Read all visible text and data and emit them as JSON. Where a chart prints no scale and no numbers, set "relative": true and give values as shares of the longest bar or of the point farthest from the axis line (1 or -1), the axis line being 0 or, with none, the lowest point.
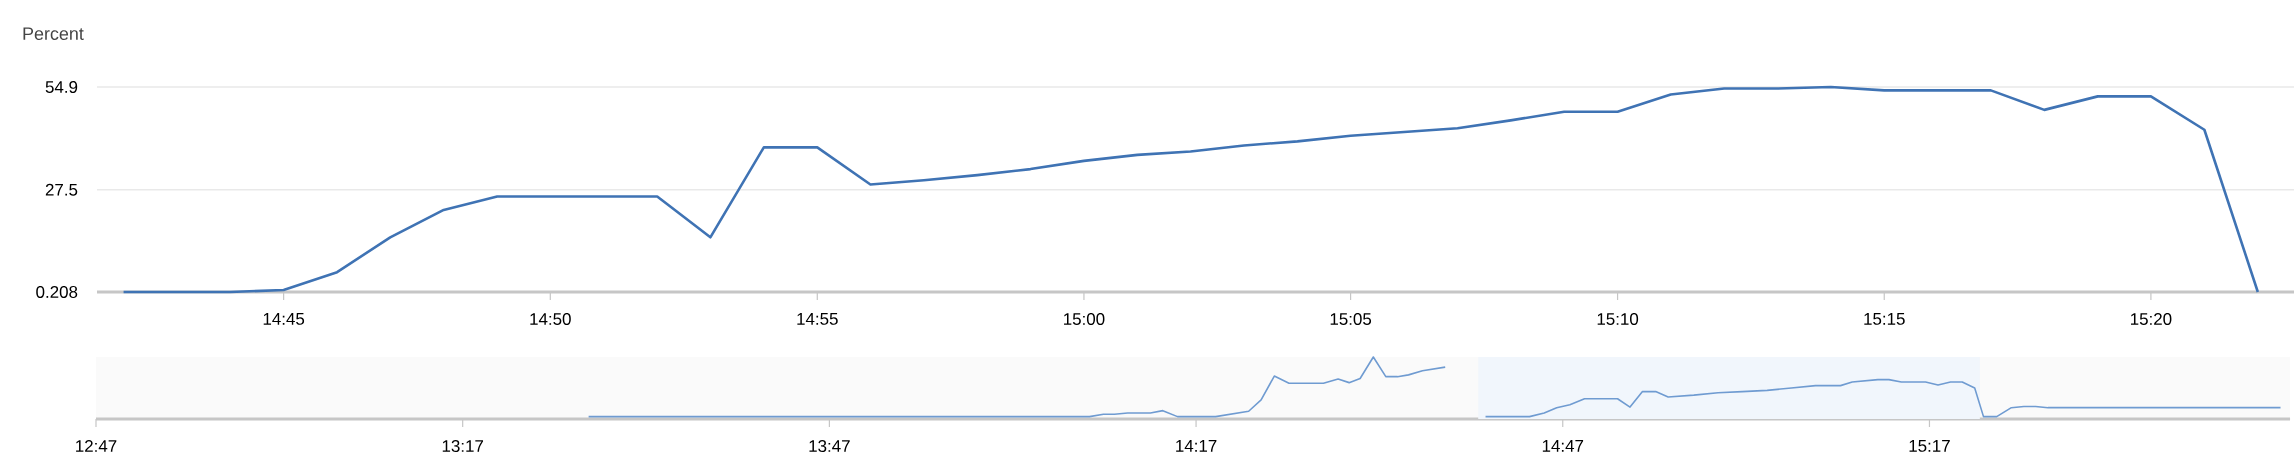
{
  "chart_data": [
    {
      "type": "line",
      "ylabel": "Percent",
      "x": [
        14.7,
        14.7167,
        14.7333,
        14.75,
        14.7667,
        14.7833,
        14.8,
        14.8167,
        14.8333,
        14.85,
        14.8667,
        14.8833,
        14.9,
        14.9167,
        14.9333,
        14.95,
        14.9667,
        14.9833,
        15.0,
        15.0167,
        15.0333,
        15.05,
        15.0667,
        15.0833,
        15.1,
        15.1167,
        15.1333,
        15.15,
        15.1667,
        15.1833,
        15.2,
        15.2167,
        15.2333,
        15.25,
        15.2667,
        15.2833,
        15.3,
        15.3167,
        15.3333,
        15.35,
        15.3667
      ],
      "series": [
        {
          "color": "#3f73b4",
          "values": [
            0.208,
            0.208,
            0.208,
            0.74,
            5.5,
            14.8,
            22.1,
            25.7,
            25.7,
            25.7,
            25.7,
            14.8,
            38.8,
            38.8,
            28.9,
            30.0,
            31.4,
            33.0,
            35.2,
            36.8,
            37.7,
            39.3,
            40.4,
            41.9,
            42.9,
            43.9,
            46.0,
            48.3,
            48.3,
            52.9,
            54.5,
            54.5,
            54.9,
            54.0,
            54.0,
            54.0,
            48.8,
            52.4,
            52.4,
            43.5,
            0.208
          ]
        }
      ],
      "xlim": [
        14.6917,
        15.378
      ],
      "xticks": [
        {
          "value": 14.75,
          "label": "14:45"
        },
        {
          "value": 14.8333,
          "label": "14:50"
        },
        {
          "value": 14.9167,
          "label": "14:55"
        },
        {
          "value": 15.0,
          "label": "15:00"
        },
        {
          "value": 15.0833,
          "label": "15:05"
        },
        {
          "value": 15.1667,
          "label": "15:10"
        },
        {
          "value": 15.25,
          "label": "15:15"
        },
        {
          "value": 15.3333,
          "label": "15:20"
        }
      ],
      "ylim": [
        0.208,
        54.9
      ],
      "yticks": [
        0.208,
        27.5,
        54.9
      ],
      "grid": "y"
    },
    {
      "type": "line",
      "relative": true,
      "x": [
        13.455,
        14.138,
        14.157,
        14.172,
        14.19,
        14.221,
        14.238,
        14.258,
        14.31,
        14.355,
        14.372,
        14.39,
        14.41,
        14.457,
        14.477,
        14.492,
        14.507,
        14.525,
        14.542,
        14.558,
        14.573,
        14.592,
        14.623,
        14.65,
        14.678,
        14.738,
        14.758,
        14.775,
        14.793,
        14.813,
        14.858,
        14.875,
        14.892,
        14.91,
        14.927,
        14.962,
        14.995,
        15.028,
        15.062,
        15.095,
        15.128,
        15.162,
        15.178,
        15.213,
        15.228,
        15.245,
        15.278,
        15.295,
        15.312,
        15.328,
        15.345,
        15.357,
        15.375,
        15.395,
        15.412,
        15.428,
        15.445,
        15.762
      ],
      "series": [
        {
          "color": "#6f9bd1",
          "values": [
            0,
            0,
            0.04,
            0.04,
            0.06,
            0.06,
            0.1,
            0,
            0,
            0.09,
            0.28,
            0.68,
            0.56,
            0.56,
            0.63,
            0.57,
            0.64,
            1,
            0.67,
            0.67,
            0.7,
            0.77,
            0.83,
            null,
            0,
            0,
            0.06,
            0.15,
            0.2,
            0.3,
            0.3,
            0.16,
            0.42,
            0.42,
            0.33,
            0.36,
            0.4,
            0.42,
            0.44,
            0.48,
            0.52,
            0.52,
            0.58,
            0.62,
            0.62,
            0.58,
            0.58,
            0.53,
            0.58,
            0.58,
            0.48,
            0,
            0,
            0.15,
            0.17,
            0.17,
            0.15,
            0.15
          ]
        }
      ],
      "xlim": [
        12.7833,
        15.775
      ],
      "xticks": [
        {
          "value": 12.7833,
          "label": "12:47"
        },
        {
          "value": 13.2833,
          "label": "13:17"
        },
        {
          "value": 13.7833,
          "label": "13:47"
        },
        {
          "value": 14.2833,
          "label": "14:17"
        },
        {
          "value": 14.7833,
          "label": "14:47"
        },
        {
          "value": 15.2833,
          "label": "15:17"
        }
      ],
      "bands": [
        {
          "axis": "x",
          "from": 14.668,
          "to": 15.352,
          "color": "#f1f6fc"
        }
      ]
    }
  ]
}
